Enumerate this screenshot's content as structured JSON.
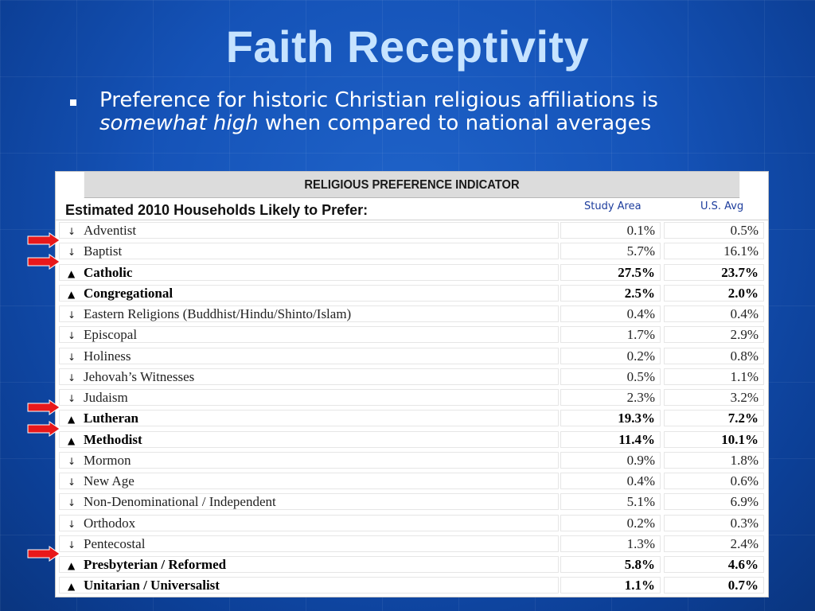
{
  "slide": {
    "title": "Faith Receptivity",
    "bullet": {
      "text_before": "Preference for historic Christian religious affiliations is ",
      "emphasis": "somewhat high",
      "text_after": " when compared to national averages"
    }
  },
  "table": {
    "title": "RELIGIOUS PREFERENCE INDICATOR",
    "header_label": "Estimated 2010 Households Likely to Prefer:",
    "col1_label": "Study Area",
    "col2_label": "U.S. Avg",
    "rows": [
      {
        "indicator": "↓",
        "name": "Adventist",
        "study": "0.1%",
        "us": "0.5%",
        "bold": false,
        "arrow": false
      },
      {
        "indicator": "↓",
        "name": "Baptist",
        "study": "5.7%",
        "us": "16.1%",
        "bold": false,
        "arrow": true
      },
      {
        "indicator": "▲",
        "name": "Catholic",
        "study": "27.5%",
        "us": "23.7%",
        "bold": true,
        "arrow": true
      },
      {
        "indicator": "▲",
        "name": "Congregational",
        "study": "2.5%",
        "us": "2.0%",
        "bold": true,
        "arrow": false
      },
      {
        "indicator": "↓",
        "name": "Eastern Religions (Buddhist/Hindu/Shinto/Islam)",
        "study": "0.4%",
        "us": "0.4%",
        "bold": false,
        "arrow": false
      },
      {
        "indicator": "↓",
        "name": "Episcopal",
        "study": "1.7%",
        "us": "2.9%",
        "bold": false,
        "arrow": false
      },
      {
        "indicator": "↓",
        "name": "Holiness",
        "study": "0.2%",
        "us": "0.8%",
        "bold": false,
        "arrow": false
      },
      {
        "indicator": "↓",
        "name": "Jehovah’s Witnesses",
        "study": "0.5%",
        "us": "1.1%",
        "bold": false,
        "arrow": false
      },
      {
        "indicator": "↓",
        "name": "Judaism",
        "study": "2.3%",
        "us": "3.2%",
        "bold": false,
        "arrow": false
      },
      {
        "indicator": "▲",
        "name": "Lutheran",
        "study": "19.3%",
        "us": "7.2%",
        "bold": true,
        "arrow": true
      },
      {
        "indicator": "▲",
        "name": "Methodist",
        "study": "11.4%",
        "us": "10.1%",
        "bold": true,
        "arrow": true
      },
      {
        "indicator": "↓",
        "name": "Mormon",
        "study": "0.9%",
        "us": "1.8%",
        "bold": false,
        "arrow": false
      },
      {
        "indicator": "↓",
        "name": "New Age",
        "study": "0.4%",
        "us": "0.6%",
        "bold": false,
        "arrow": false
      },
      {
        "indicator": "↓",
        "name": "Non-Denominational / Independent",
        "study": "5.1%",
        "us": "6.9%",
        "bold": false,
        "arrow": false
      },
      {
        "indicator": "↓",
        "name": "Orthodox",
        "study": "0.2%",
        "us": "0.3%",
        "bold": false,
        "arrow": false
      },
      {
        "indicator": "↓",
        "name": "Pentecostal",
        "study": "1.3%",
        "us": "2.4%",
        "bold": false,
        "arrow": false
      },
      {
        "indicator": "▲",
        "name": "Presbyterian / Reformed",
        "study": "5.8%",
        "us": "4.6%",
        "bold": true,
        "arrow": true
      },
      {
        "indicator": "▲",
        "name": "Unitarian / Universalist",
        "study": "1.1%",
        "us": "0.7%",
        "bold": true,
        "arrow": false
      }
    ]
  },
  "colors": {
    "background": "#1553b8",
    "title": "#c6e3ff",
    "arrow": "#e8181a",
    "column_header": "#1c3c9c"
  },
  "icons": {
    "increase_indicator": "triangle-up-icon",
    "decrease_indicator": "down-arrow-icon",
    "highlight_arrow": "red-right-arrow-icon",
    "bullet": "square-bullet-icon"
  }
}
